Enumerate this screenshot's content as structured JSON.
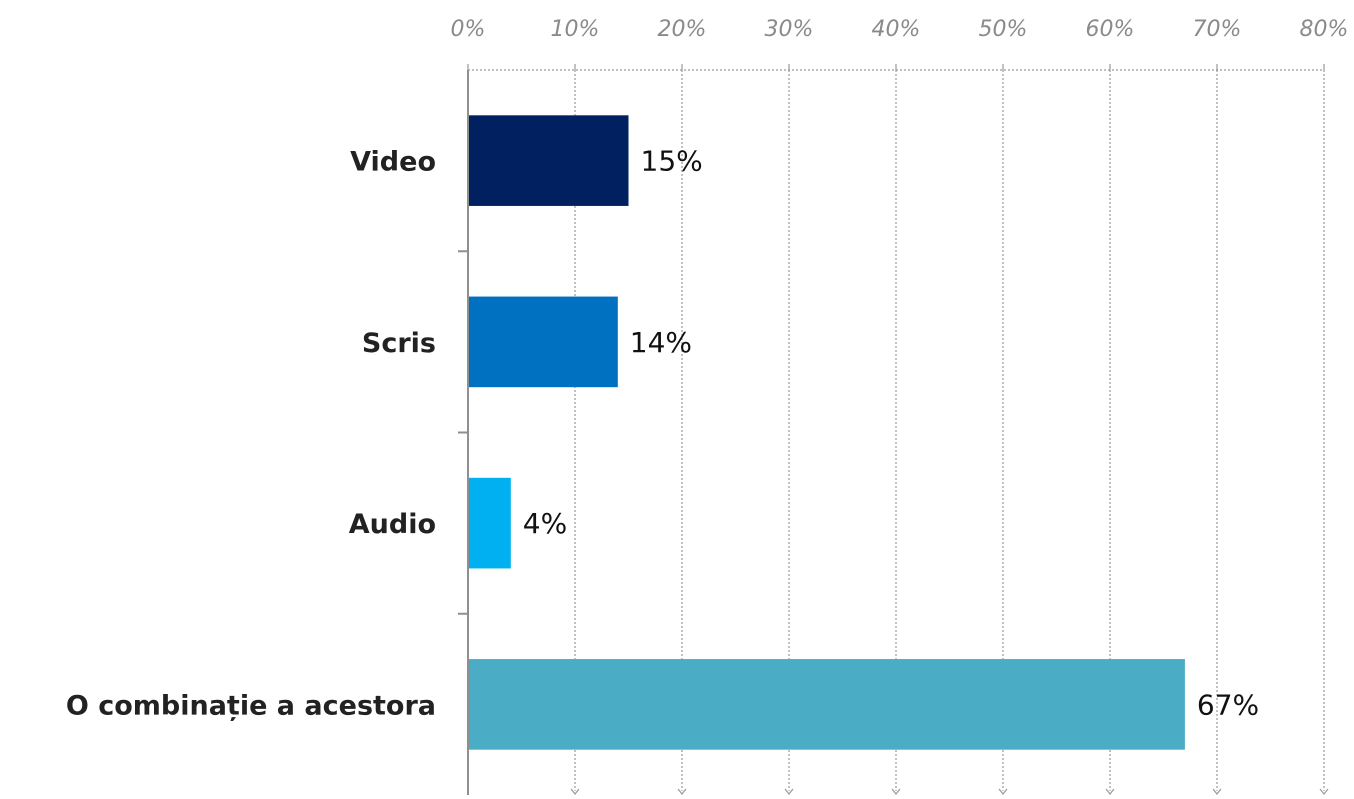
{
  "chart_data": {
    "type": "bar",
    "orientation": "horizontal",
    "categories": [
      "Video",
      "Scris",
      "Audio",
      "O combinație a acestora"
    ],
    "values": [
      15,
      14,
      4,
      67
    ],
    "value_labels": [
      "15%",
      "14%",
      "4%",
      "67%"
    ],
    "bar_colors": [
      "#002060",
      "#0070C0",
      "#00B0F0",
      "#4BACC6"
    ],
    "x_ticks": [
      "0%",
      "10%",
      "20%",
      "30%",
      "40%",
      "50%",
      "60%",
      "70%",
      "80%"
    ],
    "xlim": [
      0,
      80
    ],
    "x_axis_position": "top",
    "grid": true,
    "title": "",
    "xlabel": "",
    "ylabel": ""
  }
}
